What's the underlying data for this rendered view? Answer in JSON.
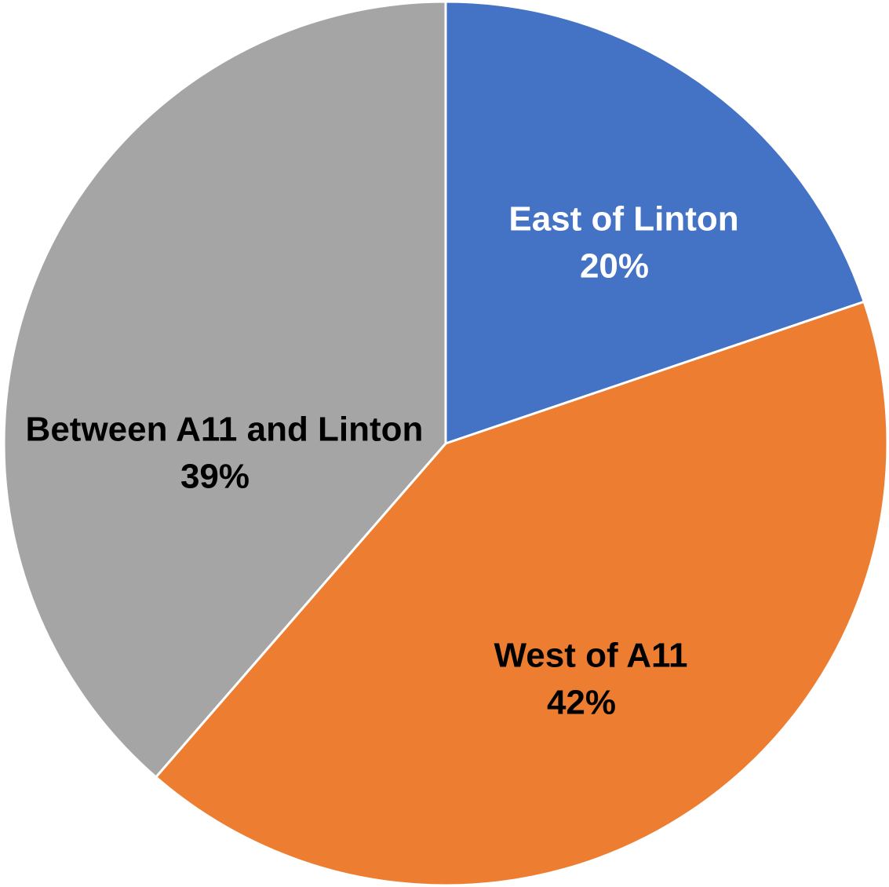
{
  "chart_data": {
    "type": "pie",
    "categories": [
      "East of Linton",
      "West of A11",
      "Between A11 and Linton"
    ],
    "values": [
      20,
      42,
      39
    ],
    "value_labels": [
      "20%",
      "42%",
      "39%"
    ],
    "colors": [
      "#4472c4",
      "#ed7d31",
      "#a5a5a5"
    ],
    "label_colors": [
      "#ffffff",
      "#000000",
      "#000000"
    ]
  }
}
